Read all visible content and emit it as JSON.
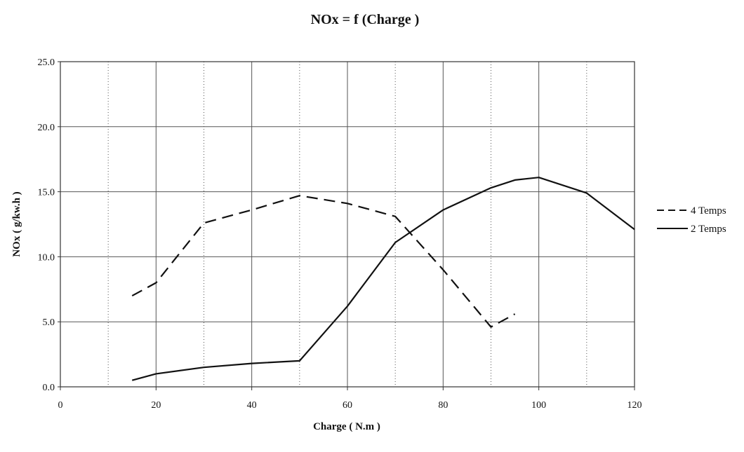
{
  "chart_data": {
    "type": "line",
    "title": "NOx = f (Charge )",
    "xlabel": "Charge ( N.m )",
    "ylabel": "NOx ( g/kw.h )",
    "xlim": [
      0,
      120
    ],
    "ylim": [
      0,
      25
    ],
    "x_ticks": [
      "0",
      "20",
      "40",
      "60",
      "80",
      "100",
      "120"
    ],
    "y_ticks": [
      "0.0",
      "5.0",
      "10.0",
      "15.0",
      "20.0",
      "25.0"
    ],
    "grid": true,
    "legend_position": "right",
    "series": [
      {
        "name": "4 Temps",
        "style": "dashed",
        "color": "#111111",
        "x": [
          15,
          20,
          30,
          40,
          50,
          60,
          70,
          80,
          90,
          95
        ],
        "y": [
          7.0,
          8.0,
          12.6,
          13.6,
          14.7,
          14.1,
          13.1,
          9.0,
          4.6,
          5.6
        ]
      },
      {
        "name": "2 Temps",
        "style": "solid",
        "color": "#111111",
        "x": [
          15,
          20,
          30,
          40,
          50,
          60,
          70,
          80,
          90,
          95,
          100,
          110,
          120
        ],
        "y": [
          0.5,
          1.0,
          1.5,
          1.8,
          2.0,
          6.2,
          11.1,
          13.6,
          15.3,
          15.9,
          16.1,
          14.9,
          12.1
        ]
      }
    ]
  }
}
